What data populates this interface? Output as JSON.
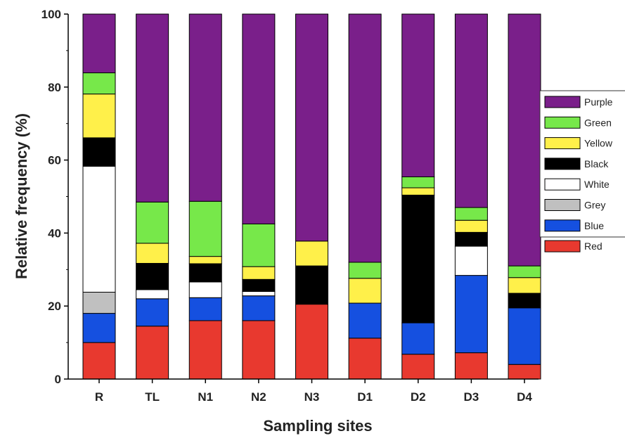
{
  "chart_data": {
    "type": "bar",
    "stacked": true,
    "title": "",
    "xlabel": "Sampling sites",
    "ylabel": "Relative frequency (%)",
    "ylim": [
      0,
      100
    ],
    "yticks": [
      0,
      20,
      40,
      60,
      80,
      100
    ],
    "grid": false,
    "legend_position": "right",
    "categories": [
      "R",
      "TL",
      "N1",
      "N2",
      "N3",
      "D1",
      "D2",
      "D3",
      "D4"
    ],
    "series": [
      {
        "name": "Red",
        "color": "#e8392f",
        "values": [
          10,
          14.5,
          16,
          16,
          20.5,
          11.2,
          6.8,
          7.2,
          4
        ]
      },
      {
        "name": "Blue",
        "color": "#1550e0",
        "values": [
          8,
          7.5,
          6.3,
          6.8,
          0,
          9.6,
          8.6,
          21.2,
          15.5
        ]
      },
      {
        "name": "Grey",
        "color": "#c0c0c0",
        "values": [
          5.8,
          0,
          0,
          0,
          0,
          0,
          0,
          0,
          0
        ]
      },
      {
        "name": "White",
        "color": "#ffffff",
        "values": [
          34.5,
          2.5,
          4.3,
          1.2,
          0,
          0,
          0,
          8,
          0
        ]
      },
      {
        "name": "Black",
        "color": "#000000",
        "values": [
          7.8,
          7.2,
          5,
          3.3,
          10.5,
          0,
          35,
          3.8,
          4
        ]
      },
      {
        "name": "Yellow",
        "color": "#fff04a",
        "values": [
          12,
          5.5,
          2,
          3.5,
          6.8,
          6.8,
          2,
          3.3,
          4.3
        ]
      },
      {
        "name": "Green",
        "color": "#77e84a",
        "values": [
          5.8,
          11.3,
          15.1,
          11.7,
          0,
          4.4,
          3,
          3.5,
          3.2
        ]
      },
      {
        "name": "Purple",
        "color": "#7a1f8a",
        "values": [
          16.1,
          51.5,
          51.3,
          57.5,
          62.2,
          68,
          44.6,
          53,
          69
        ]
      }
    ],
    "legend_order": [
      "Purple",
      "Green",
      "Yellow",
      "Black",
      "White",
      "Grey",
      "Blue",
      "Red"
    ]
  }
}
